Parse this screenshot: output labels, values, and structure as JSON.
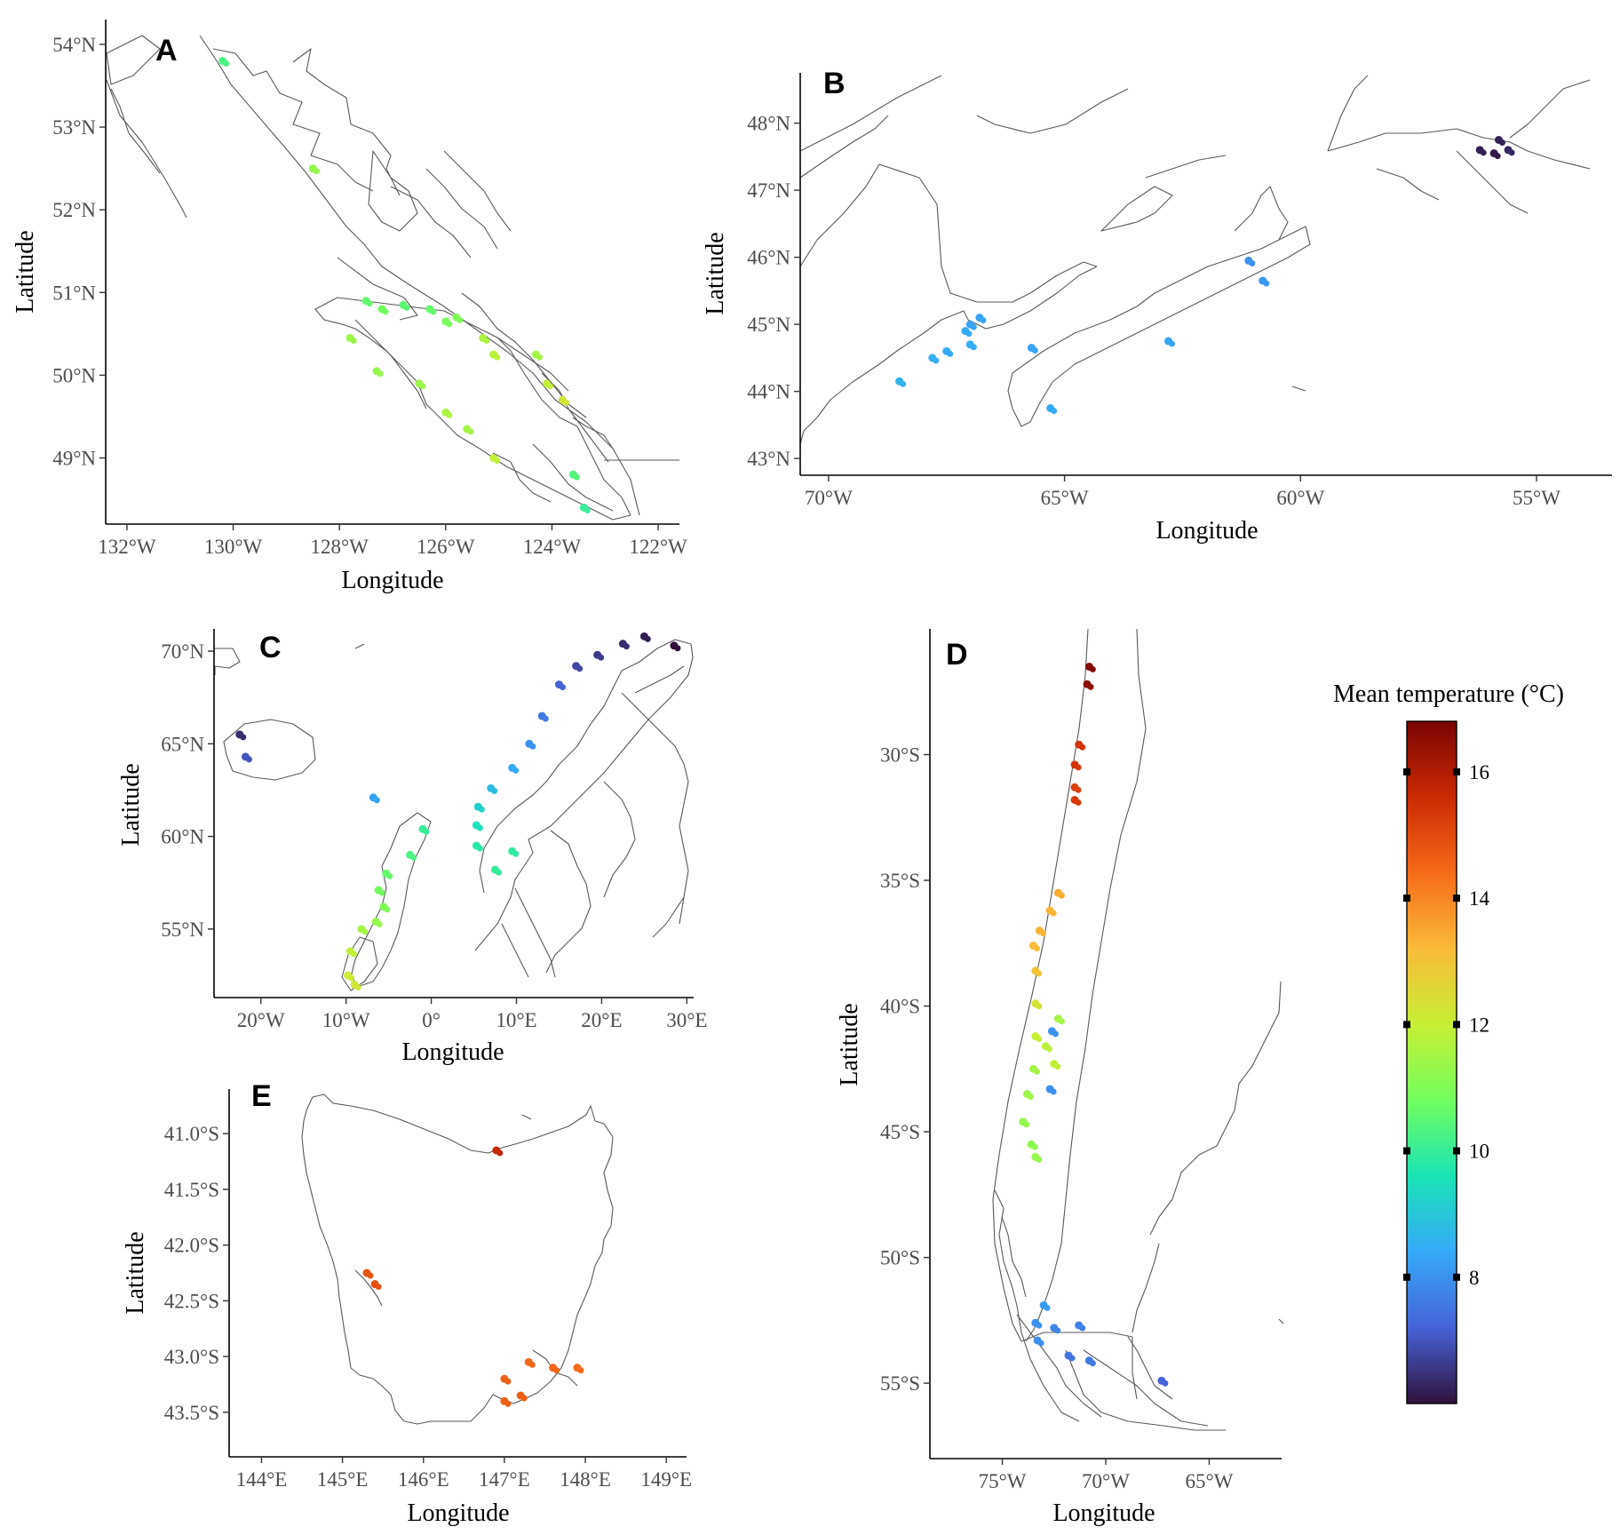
{
  "legend": {
    "title": "Mean temperature (°C)",
    "ticks": [
      "16",
      "14",
      "12",
      "10",
      "8"
    ],
    "range": [
      6,
      16.8
    ],
    "colormap": [
      "#30123b",
      "#4662d7",
      "#36aaf9",
      "#1ae4b6",
      "#72fe5e",
      "#c7ef34",
      "#fabb39",
      "#f66b19",
      "#cb2a04",
      "#7a0403"
    ]
  },
  "panels": [
    {
      "id": "A",
      "letter": "A",
      "xlabel": "Longitude",
      "ylabel": "Latitude",
      "xticks": [
        "132°W",
        "130°W",
        "128°W",
        "126°W",
        "124°W",
        "122°W"
      ],
      "yticks": [
        "54°N",
        "53°N",
        "52°N",
        "51°N",
        "50°N",
        "49°N"
      ]
    },
    {
      "id": "B",
      "letter": "B",
      "xlabel": "Longitude",
      "ylabel": "Latitude",
      "xticks": [
        "70°W",
        "65°W",
        "60°W",
        "55°W"
      ],
      "yticks": [
        "48°N",
        "47°N",
        "46°N",
        "45°N",
        "44°N",
        "43°N"
      ]
    },
    {
      "id": "C",
      "letter": "C",
      "xlabel": "Longitude",
      "ylabel": "Latitude",
      "xticks": [
        "20°W",
        "10°W",
        "0°",
        "10°E",
        "20°E",
        "30°E"
      ],
      "yticks": [
        "70°N",
        "65°N",
        "60°N",
        "55°N"
      ]
    },
    {
      "id": "D",
      "letter": "D",
      "xlabel": "Longitude",
      "ylabel": "Latitude",
      "xticks": [
        "75°W",
        "70°W",
        "65°W"
      ],
      "yticks": [
        "30°S",
        "35°S",
        "40°S",
        "45°S",
        "50°S",
        "55°S"
      ]
    },
    {
      "id": "E",
      "letter": "E",
      "xlabel": "Longitude",
      "ylabel": "Latitude",
      "xticks": [
        "144°E",
        "145°E",
        "146°E",
        "147°E",
        "148°E",
        "149°E"
      ],
      "yticks": [
        "41.0°S",
        "41.5°S",
        "42.0°S",
        "42.5°S",
        "43.0°S",
        "43.5°S"
      ]
    }
  ],
  "sites": {
    "A": [
      {
        "lon": -130.2,
        "lat": 53.8,
        "t": 10.3
      },
      {
        "lon": -128.5,
        "lat": 52.5,
        "t": 11.3
      },
      {
        "lon": -127.5,
        "lat": 50.9,
        "t": 10.6
      },
      {
        "lon": -127.2,
        "lat": 50.8,
        "t": 10.8
      },
      {
        "lon": -126.8,
        "lat": 50.85,
        "t": 10.5
      },
      {
        "lon": -126.3,
        "lat": 50.8,
        "t": 10.6
      },
      {
        "lon": -126.0,
        "lat": 50.65,
        "t": 10.9
      },
      {
        "lon": -125.8,
        "lat": 50.7,
        "t": 11.0
      },
      {
        "lon": -127.8,
        "lat": 50.45,
        "t": 11.4
      },
      {
        "lon": -125.3,
        "lat": 50.45,
        "t": 11.6
      },
      {
        "lon": -125.1,
        "lat": 50.25,
        "t": 11.8
      },
      {
        "lon": -124.3,
        "lat": 50.25,
        "t": 11.5
      },
      {
        "lon": -127.3,
        "lat": 50.05,
        "t": 11.3
      },
      {
        "lon": -126.5,
        "lat": 49.9,
        "t": 11.4
      },
      {
        "lon": -126.0,
        "lat": 49.55,
        "t": 11.6
      },
      {
        "lon": -125.6,
        "lat": 49.35,
        "t": 11.5
      },
      {
        "lon": -123.8,
        "lat": 49.7,
        "t": 12.2
      },
      {
        "lon": -124.1,
        "lat": 49.9,
        "t": 11.9
      },
      {
        "lon": -125.1,
        "lat": 49.0,
        "t": 11.9
      },
      {
        "lon": -123.6,
        "lat": 48.8,
        "t": 10.4
      },
      {
        "lon": -123.4,
        "lat": 48.4,
        "t": 10.0
      }
    ],
    "B": [
      {
        "lon": -67.0,
        "lat": 45.0,
        "t": 8.3
      },
      {
        "lon": -66.8,
        "lat": 45.1,
        "t": 8.3
      },
      {
        "lon": -67.1,
        "lat": 44.9,
        "t": 8.4
      },
      {
        "lon": -67.0,
        "lat": 44.7,
        "t": 8.5
      },
      {
        "lon": -67.5,
        "lat": 44.6,
        "t": 8.4
      },
      {
        "lon": -67.8,
        "lat": 44.5,
        "t": 8.5
      },
      {
        "lon": -68.5,
        "lat": 44.15,
        "t": 8.6
      },
      {
        "lon": -65.7,
        "lat": 44.65,
        "t": 8.3
      },
      {
        "lon": -65.3,
        "lat": 43.75,
        "t": 8.4
      },
      {
        "lon": -62.8,
        "lat": 44.75,
        "t": 8.3
      },
      {
        "lon": -61.1,
        "lat": 45.95,
        "t": 8.0
      },
      {
        "lon": -60.8,
        "lat": 45.65,
        "t": 8.1
      },
      {
        "lon": -56.2,
        "lat": 47.6,
        "t": 6.2
      },
      {
        "lon": -55.9,
        "lat": 47.55,
        "t": 6.1
      },
      {
        "lon": -55.6,
        "lat": 47.6,
        "t": 6.3
      },
      {
        "lon": -55.8,
        "lat": 47.75,
        "t": 6.2
      }
    ],
    "C": [
      {
        "lon": -22.5,
        "lat": 65.5,
        "t": 6.4
      },
      {
        "lon": -21.8,
        "lat": 64.3,
        "t": 7.0
      },
      {
        "lon": -6.8,
        "lat": 62.1,
        "t": 8.3
      },
      {
        "lon": -1.0,
        "lat": 60.4,
        "t": 10.0
      },
      {
        "lon": -2.5,
        "lat": 59.0,
        "t": 10.3
      },
      {
        "lon": -5.3,
        "lat": 58.0,
        "t": 10.6
      },
      {
        "lon": -6.2,
        "lat": 57.1,
        "t": 10.8
      },
      {
        "lon": -5.6,
        "lat": 56.2,
        "t": 11.0
      },
      {
        "lon": -6.5,
        "lat": 55.4,
        "t": 11.3
      },
      {
        "lon": -8.2,
        "lat": 55.0,
        "t": 11.5
      },
      {
        "lon": -9.5,
        "lat": 53.8,
        "t": 11.9
      },
      {
        "lon": -9.8,
        "lat": 52.5,
        "t": 12.1
      },
      {
        "lon": -9.0,
        "lat": 52.0,
        "t": 12.2
      },
      {
        "lon": 5.3,
        "lat": 59.5,
        "t": 9.8
      },
      {
        "lon": 5.3,
        "lat": 60.6,
        "t": 9.5
      },
      {
        "lon": 5.5,
        "lat": 61.6,
        "t": 9.2
      },
      {
        "lon": 7.0,
        "lat": 62.6,
        "t": 8.8
      },
      {
        "lon": 9.5,
        "lat": 63.7,
        "t": 8.4
      },
      {
        "lon": 11.5,
        "lat": 65.0,
        "t": 8.0
      },
      {
        "lon": 13.0,
        "lat": 66.5,
        "t": 7.6
      },
      {
        "lon": 15.0,
        "lat": 68.2,
        "t": 7.2
      },
      {
        "lon": 17.0,
        "lat": 69.2,
        "t": 6.8
      },
      {
        "lon": 19.5,
        "lat": 69.8,
        "t": 6.6
      },
      {
        "lon": 22.5,
        "lat": 70.4,
        "t": 6.4
      },
      {
        "lon": 25.0,
        "lat": 70.8,
        "t": 6.2
      },
      {
        "lon": 28.5,
        "lat": 70.3,
        "t": 6.0
      },
      {
        "lon": 7.5,
        "lat": 58.2,
        "t": 10.0
      },
      {
        "lon": 9.5,
        "lat": 59.2,
        "t": 9.9
      }
    ],
    "D": [
      {
        "lon": -70.8,
        "lat": -26.5,
        "t": 16.6
      },
      {
        "lon": -70.9,
        "lat": -27.2,
        "t": 16.5
      },
      {
        "lon": -71.3,
        "lat": -29.6,
        "t": 15.4
      },
      {
        "lon": -71.5,
        "lat": -30.4,
        "t": 15.4
      },
      {
        "lon": -71.5,
        "lat": -31.3,
        "t": 15.2
      },
      {
        "lon": -71.5,
        "lat": -31.8,
        "t": 15.3
      },
      {
        "lon": -72.3,
        "lat": -35.5,
        "t": 13.4
      },
      {
        "lon": -72.7,
        "lat": -36.2,
        "t": 13.3
      },
      {
        "lon": -73.2,
        "lat": -37.0,
        "t": 13.3
      },
      {
        "lon": -73.5,
        "lat": -37.6,
        "t": 13.2
      },
      {
        "lon": -73.4,
        "lat": -38.6,
        "t": 13.0
      },
      {
        "lon": -73.4,
        "lat": -39.9,
        "t": 12.3
      },
      {
        "lon": -73.4,
        "lat": -41.2,
        "t": 12.0
      },
      {
        "lon": -72.9,
        "lat": -41.6,
        "t": 11.8
      },
      {
        "lon": -73.5,
        "lat": -42.5,
        "t": 11.5
      },
      {
        "lon": -72.5,
        "lat": -42.3,
        "t": 11.9
      },
      {
        "lon": -73.8,
        "lat": -43.5,
        "t": 11.4
      },
      {
        "lon": -74.0,
        "lat": -44.6,
        "t": 11.3
      },
      {
        "lon": -73.6,
        "lat": -45.5,
        "t": 11.2
      },
      {
        "lon": -73.4,
        "lat": -46.0,
        "t": 11.3
      },
      {
        "lon": -72.3,
        "lat": -40.5,
        "t": 11.5
      },
      {
        "lon": -72.6,
        "lat": -41.0,
        "t": 8.0
      },
      {
        "lon": -72.7,
        "lat": -43.3,
        "t": 8.0
      },
      {
        "lon": -73.0,
        "lat": -51.9,
        "t": 8.2
      },
      {
        "lon": -73.4,
        "lat": -52.6,
        "t": 8.0
      },
      {
        "lon": -72.5,
        "lat": -52.8,
        "t": 7.8
      },
      {
        "lon": -71.3,
        "lat": -52.7,
        "t": 7.7
      },
      {
        "lon": -73.3,
        "lat": -53.3,
        "t": 7.9
      },
      {
        "lon": -71.8,
        "lat": -53.9,
        "t": 7.5
      },
      {
        "lon": -70.8,
        "lat": -54.1,
        "t": 7.6
      },
      {
        "lon": -67.3,
        "lat": -54.9,
        "t": 7.2
      }
    ],
    "E": [
      {
        "lon": 146.9,
        "lat": -41.15,
        "t": 15.7
      },
      {
        "lon": 145.3,
        "lat": -42.25,
        "t": 14.8
      },
      {
        "lon": 145.4,
        "lat": -42.35,
        "t": 14.9
      },
      {
        "lon": 147.3,
        "lat": -43.05,
        "t": 14.5
      },
      {
        "lon": 147.0,
        "lat": -43.2,
        "t": 14.6
      },
      {
        "lon": 147.2,
        "lat": -43.35,
        "t": 14.6
      },
      {
        "lon": 147.0,
        "lat": -43.4,
        "t": 14.6
      },
      {
        "lon": 147.6,
        "lat": -43.1,
        "t": 14.5
      },
      {
        "lon": 147.9,
        "lat": -43.1,
        "t": 14.4
      }
    ]
  }
}
